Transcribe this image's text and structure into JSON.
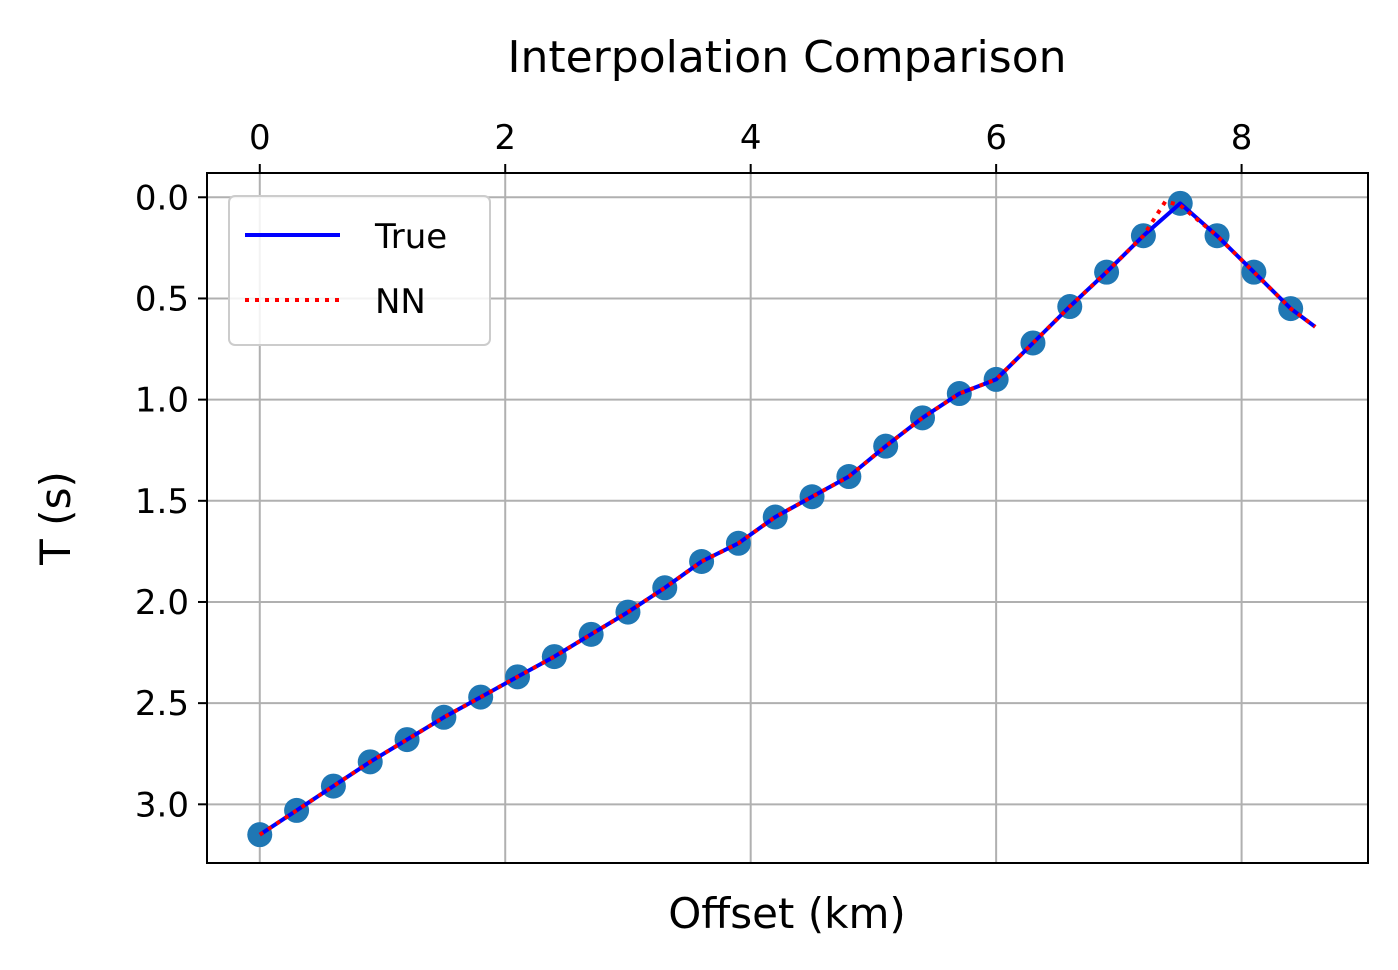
{
  "chart_data": {
    "type": "line",
    "title": "Interpolation Comparison",
    "xlabel": "Offset (km)",
    "ylabel": "T (s)",
    "x_axis_position": "top",
    "y_inverted": true,
    "xlim": [
      -0.43,
      9.03
    ],
    "ylim": [
      3.29,
      -0.12
    ],
    "xticks": [
      0,
      2,
      4,
      6,
      8
    ],
    "xtick_labels": [
      "0",
      "2",
      "4",
      "6",
      "8"
    ],
    "yticks": [
      0.0,
      0.5,
      1.0,
      1.5,
      2.0,
      2.5,
      3.0
    ],
    "ytick_labels": [
      "0.0",
      "0.5",
      "1.0",
      "1.5",
      "2.0",
      "2.5",
      "3.0"
    ],
    "grid": true,
    "legend": {
      "position": "upper-left",
      "entries": [
        {
          "label": "True",
          "color": "#0000ff",
          "style": "solid"
        },
        {
          "label": "NN",
          "color": "#ff0000",
          "style": "dotted"
        }
      ]
    },
    "scatter": {
      "color": "#1f77b4",
      "x": [
        0.0,
        0.3,
        0.6,
        0.9,
        1.2,
        1.5,
        1.8,
        2.1,
        2.4,
        2.7,
        3.0,
        3.3,
        3.6,
        3.9,
        4.2,
        4.5,
        4.8,
        5.1,
        5.4,
        5.7,
        6.0,
        6.3,
        6.6,
        6.9,
        7.2,
        7.5,
        7.8,
        8.1,
        8.4
      ],
      "y": [
        3.15,
        3.03,
        2.91,
        2.79,
        2.68,
        2.57,
        2.47,
        2.37,
        2.27,
        2.16,
        2.05,
        1.93,
        1.8,
        1.71,
        1.58,
        1.48,
        1.38,
        1.23,
        1.09,
        0.97,
        0.9,
        0.72,
        0.54,
        0.37,
        0.19,
        0.03,
        0.19,
        0.37,
        0.55
      ]
    },
    "series": [
      {
        "name": "True",
        "color": "#0000ff",
        "x": [
          0.0,
          0.3,
          0.6,
          0.9,
          1.2,
          1.5,
          1.8,
          2.1,
          2.4,
          2.7,
          3.0,
          3.3,
          3.6,
          3.9,
          4.2,
          4.5,
          4.8,
          5.1,
          5.4,
          5.7,
          6.0,
          6.3,
          6.6,
          6.9,
          7.2,
          7.5,
          7.8,
          8.1,
          8.4,
          8.6
        ],
        "values": [
          3.15,
          3.03,
          2.91,
          2.79,
          2.68,
          2.57,
          2.47,
          2.37,
          2.27,
          2.16,
          2.05,
          1.93,
          1.8,
          1.71,
          1.58,
          1.48,
          1.38,
          1.23,
          1.09,
          0.97,
          0.9,
          0.72,
          0.54,
          0.37,
          0.19,
          0.03,
          0.19,
          0.37,
          0.55,
          0.64
        ]
      },
      {
        "name": "NN",
        "color": "#ff0000",
        "x": [
          0.0,
          0.3,
          0.6,
          0.9,
          1.2,
          1.5,
          1.8,
          2.1,
          2.4,
          2.7,
          3.0,
          3.3,
          3.6,
          3.9,
          4.2,
          4.5,
          4.8,
          5.1,
          5.4,
          5.7,
          6.0,
          6.3,
          6.6,
          6.9,
          7.2,
          7.38,
          7.5,
          7.8,
          8.1,
          8.4,
          8.6
        ],
        "values": [
          3.15,
          3.03,
          2.91,
          2.79,
          2.68,
          2.57,
          2.47,
          2.37,
          2.27,
          2.16,
          2.05,
          1.93,
          1.8,
          1.71,
          1.58,
          1.48,
          1.38,
          1.23,
          1.09,
          0.97,
          0.9,
          0.72,
          0.54,
          0.37,
          0.19,
          0.02,
          0.04,
          0.19,
          0.37,
          0.55,
          0.64
        ]
      }
    ]
  }
}
